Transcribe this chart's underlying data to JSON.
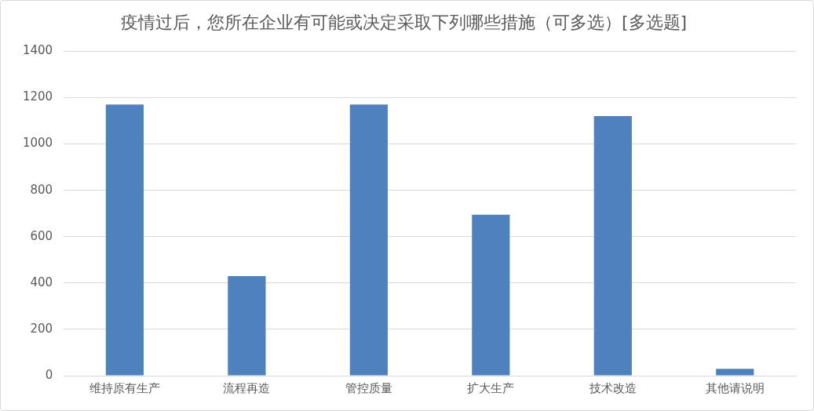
{
  "chart_data": {
    "type": "bar",
    "title": "疫情过后，您所在企业有可能或决定采取下列哪些措施（可多选）[多选题]",
    "categories": [
      "维持原有生产",
      "流程再造",
      "管控质量",
      "扩大生产",
      "技术改造",
      "其他请说明"
    ],
    "values": [
      1170,
      430,
      1170,
      695,
      1120,
      30
    ],
    "color": "#4f81bd",
    "ylim": [
      0,
      1400
    ],
    "yticks": [
      0,
      200,
      400,
      600,
      800,
      1000,
      1200,
      1400
    ],
    "grid": true
  }
}
